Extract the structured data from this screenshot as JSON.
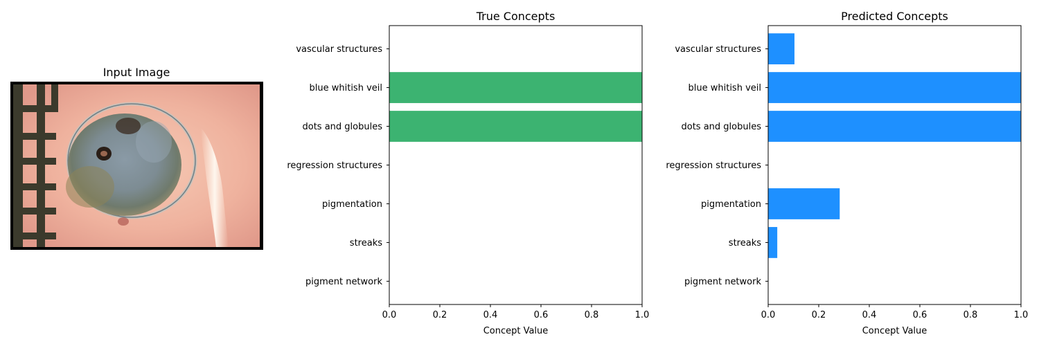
{
  "input_image": {
    "title": "Input Image"
  },
  "chart_data": [
    {
      "type": "bar",
      "orientation": "horizontal",
      "title": "True Concepts",
      "xlabel": "Concept Value",
      "ylabel": "",
      "xlim": [
        0,
        1
      ],
      "xticks": [
        "0.0",
        "0.2",
        "0.4",
        "0.6",
        "0.8",
        "1.0"
      ],
      "categories": [
        "vascular structures",
        "blue whitish veil",
        "dots and globules",
        "regression structures",
        "pigmentation",
        "streaks",
        "pigment network"
      ],
      "values": [
        0,
        1,
        1,
        0,
        0,
        0,
        0
      ],
      "color": "#3cb371",
      "grid": false
    },
    {
      "type": "bar",
      "orientation": "horizontal",
      "title": "Predicted Concepts",
      "xlabel": "Concept Value",
      "ylabel": "",
      "xlim": [
        0,
        1
      ],
      "xticks": [
        "0.0",
        "0.2",
        "0.4",
        "0.6",
        "0.8",
        "1.0"
      ],
      "categories": [
        "vascular structures",
        "blue whitish veil",
        "dots and globules",
        "regression structures",
        "pigmentation",
        "streaks",
        "pigment network"
      ],
      "values": [
        0.104,
        1,
        1,
        0,
        0.283,
        0.036,
        0
      ],
      "color": "#1e90ff",
      "grid": false
    }
  ]
}
